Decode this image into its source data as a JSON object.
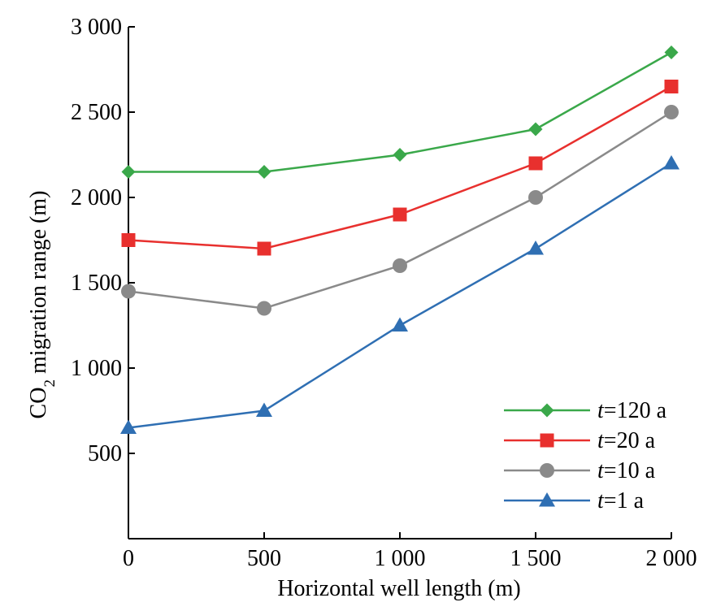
{
  "chart_data": {
    "type": "line",
    "title": "",
    "xlabel": "Horizontal well length (m)",
    "ylabel_main": "CO",
    "ylabel_sub": "2",
    "ylabel_rest": " migration range (m)",
    "x": [
      0,
      500,
      1000,
      1500,
      2000
    ],
    "x_tick_labels": [
      "0",
      "500",
      "1 000",
      "1 500",
      "2 000"
    ],
    "y_ticks": [
      500,
      1000,
      1500,
      2000,
      2500,
      3000
    ],
    "y_tick_labels": [
      "500",
      "1 000",
      "1 500",
      "2 000",
      "2 500",
      "3 000"
    ],
    "xlim": [
      0,
      2000
    ],
    "ylim": [
      0,
      3000
    ],
    "grid": false,
    "legend_position": "bottom-right",
    "series": [
      {
        "name_var": "t",
        "name_rest": "=120 a",
        "color": "#3aa84a",
        "marker": "diamond",
        "values": [
          2150,
          2150,
          2250,
          2400,
          2850
        ]
      },
      {
        "name_var": "t",
        "name_rest": "=20 a",
        "color": "#e8302e",
        "marker": "square",
        "values": [
          1750,
          1700,
          1900,
          2200,
          2650
        ]
      },
      {
        "name_var": "t",
        "name_rest": "=10 a",
        "color": "#8a8a8a",
        "marker": "circle",
        "values": [
          1450,
          1350,
          1600,
          2000,
          2500
        ]
      },
      {
        "name_var": "t",
        "name_rest": "=1 a",
        "color": "#2f6fb3",
        "marker": "triangle",
        "values": [
          650,
          750,
          1250,
          1700,
          2200
        ]
      }
    ]
  }
}
